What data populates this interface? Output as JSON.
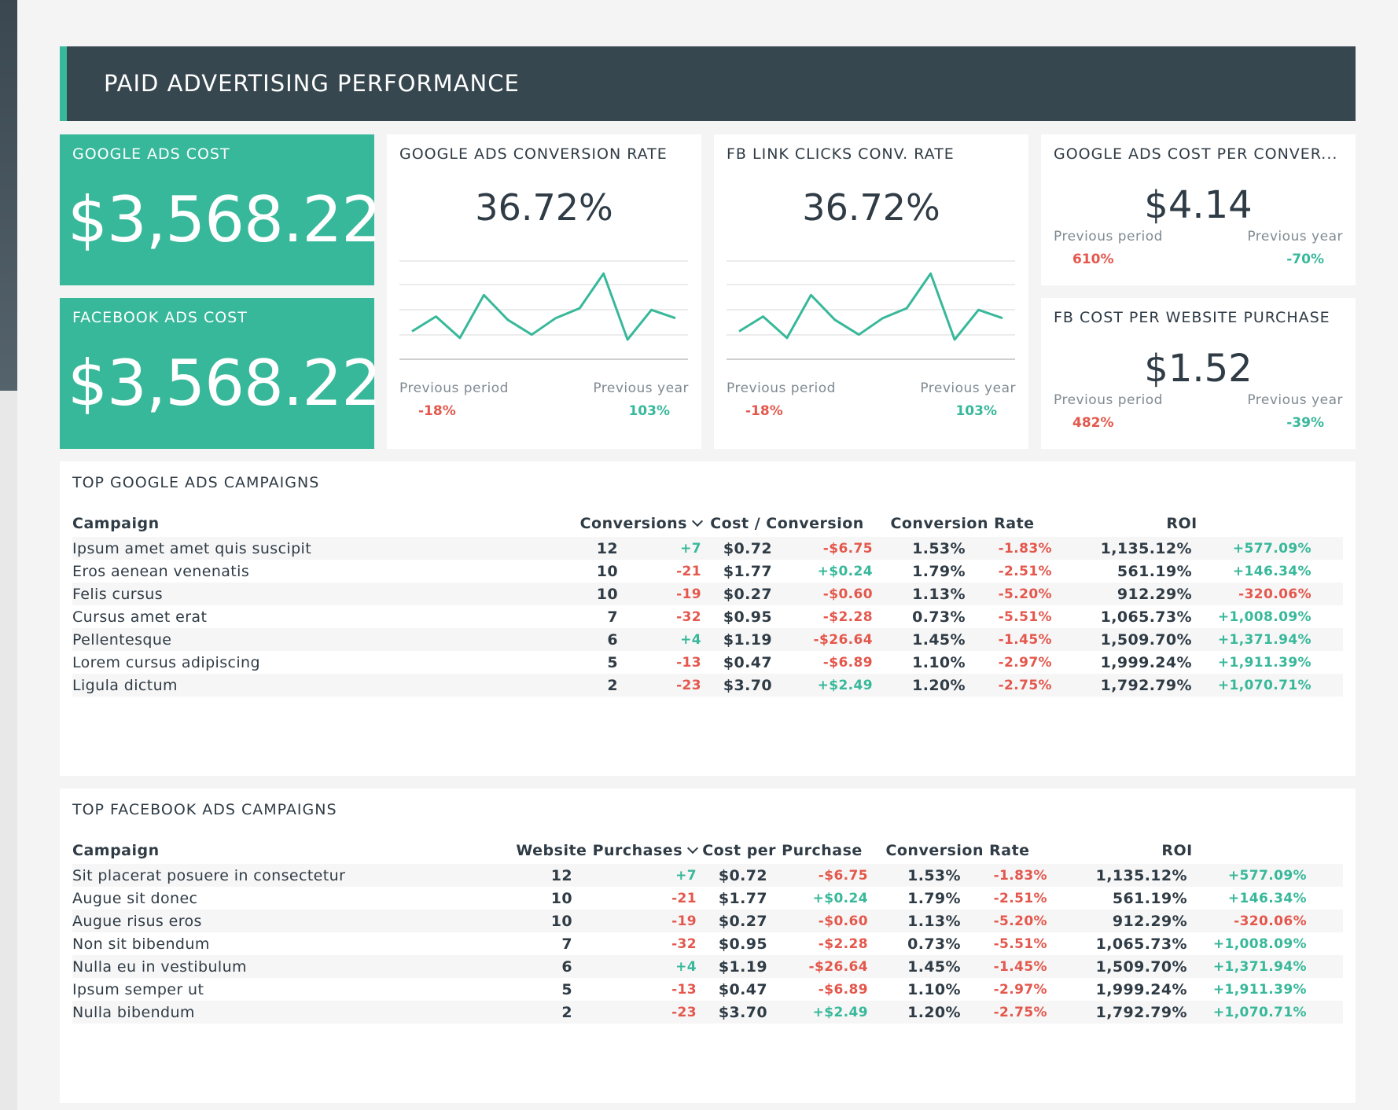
{
  "header": {
    "title": "PAID ADVERTISING PERFORMANCE"
  },
  "tiles": {
    "google_cost": {
      "label": "GOOGLE ADS COST",
      "value": "$3,568.22"
    },
    "facebook_cost": {
      "label": "FACEBOOK ADS COST",
      "value": "$3,568.22"
    },
    "google_conv_rate": {
      "label": "GOOGLE ADS CONVERSION RATE",
      "value": "36.72%",
      "prev_period_label": "Previous period",
      "prev_period": "-18%",
      "prev_year_label": "Previous year",
      "prev_year": "103%",
      "sparkline": [
        5,
        14,
        1,
        27,
        12,
        3,
        13,
        19,
        40,
        0,
        18,
        13
      ]
    },
    "fb_conv_rate": {
      "label": "FB LINK CLICKS CONV. RATE",
      "value": "36.72%",
      "prev_period_label": "Previous period",
      "prev_period": "-18%",
      "prev_year_label": "Previous year",
      "prev_year": "103%",
      "sparkline": [
        5,
        14,
        1,
        27,
        12,
        3,
        13,
        19,
        40,
        0,
        18,
        13
      ]
    },
    "google_cost_per_conv": {
      "label": "GOOGLE ADS COST PER CONVER...",
      "value": "$4.14",
      "prev_period_label": "Previous period",
      "prev_period": "610%",
      "prev_year_label": "Previous year",
      "prev_year": "-70%"
    },
    "fb_cost_per_purchase": {
      "label": "FB COST PER WEBSITE PURCHASE",
      "value": "$1.52",
      "prev_period_label": "Previous period",
      "prev_period": "482%",
      "prev_year_label": "Previous year",
      "prev_year": "-39%"
    }
  },
  "google_table": {
    "title": "TOP GOOGLE ADS CAMPAIGNS",
    "headers": [
      "Campaign",
      "Conversions",
      "Cost / Conversion",
      "Conversion Rate",
      "ROI"
    ],
    "rows": [
      [
        "Ipsum amet amet quis suscipit",
        "12",
        "+7",
        "$0.72",
        "-$6.75",
        "1.53%",
        "-1.83%",
        "1,135.12%",
        "+577.09%"
      ],
      [
        "Eros aenean venenatis",
        "10",
        "-21",
        "$1.77",
        "+$0.24",
        "1.79%",
        "-2.51%",
        "561.19%",
        "+146.34%"
      ],
      [
        "Felis cursus",
        "10",
        "-19",
        "$0.27",
        "-$0.60",
        "1.13%",
        "-5.20%",
        "912.29%",
        "-320.06%"
      ],
      [
        "Cursus amet erat",
        "7",
        "-32",
        "$0.95",
        "-$2.28",
        "0.73%",
        "-5.51%",
        "1,065.73%",
        "+1,008.09%"
      ],
      [
        "Pellentesque",
        "6",
        "+4",
        "$1.19",
        "-$26.64",
        "1.45%",
        "-1.45%",
        "1,509.70%",
        "+1,371.94%"
      ],
      [
        "Lorem cursus adipiscing",
        "5",
        "-13",
        "$0.47",
        "-$6.89",
        "1.10%",
        "-2.97%",
        "1,999.24%",
        "+1,911.39%"
      ],
      [
        "Ligula dictum",
        "2",
        "-23",
        "$3.70",
        "+$2.49",
        "1.20%",
        "-2.75%",
        "1,792.79%",
        "+1,070.71%"
      ]
    ]
  },
  "facebook_table": {
    "title": "TOP FACEBOOK ADS CAMPAIGNS",
    "headers": [
      "Campaign",
      "Website Purchases",
      "Cost per Purchase",
      "Conversion Rate",
      "ROI"
    ],
    "rows": [
      [
        "Sit placerat posuere in consectetur",
        "12",
        "+7",
        "$0.72",
        "-$6.75",
        "1.53%",
        "-1.83%",
        "1,135.12%",
        "+577.09%"
      ],
      [
        "Augue sit donec",
        "10",
        "-21",
        "$1.77",
        "+$0.24",
        "1.79%",
        "-2.51%",
        "561.19%",
        "+146.34%"
      ],
      [
        "Augue risus eros",
        "10",
        "-19",
        "$0.27",
        "-$0.60",
        "1.13%",
        "-5.20%",
        "912.29%",
        "-320.06%"
      ],
      [
        "Non sit bibendum",
        "7",
        "-32",
        "$0.95",
        "-$2.28",
        "0.73%",
        "-5.51%",
        "1,065.73%",
        "+1,008.09%"
      ],
      [
        "Nulla eu in vestibulum",
        "6",
        "+4",
        "$1.19",
        "-$26.64",
        "1.45%",
        "-1.45%",
        "1,509.70%",
        "+1,371.94%"
      ],
      [
        "Ipsum semper ut",
        "5",
        "-13",
        "$0.47",
        "-$6.89",
        "1.10%",
        "-2.97%",
        "1,999.24%",
        "+1,911.39%"
      ],
      [
        "Nulla bibendum",
        "2",
        "-23",
        "$3.70",
        "+$2.49",
        "1.20%",
        "-2.75%",
        "1,792.79%",
        "+1,070.71%"
      ]
    ]
  },
  "colors": {
    "accent": "#38b89a",
    "header_bg": "#37474f",
    "negative": "#e4574c",
    "positive": "#38b89a"
  },
  "icons": {
    "sort": "chevron-down-icon"
  }
}
